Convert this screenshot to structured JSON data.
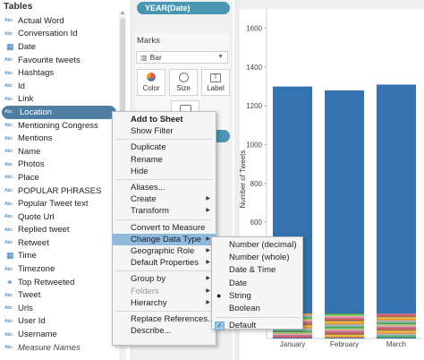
{
  "data_pane": {
    "header": "Tables",
    "fields": [
      {
        "icon": "Abc",
        "label": "Actual Word",
        "type": "dimension"
      },
      {
        "icon": "Abc",
        "label": "Conversation Id",
        "type": "dimension"
      },
      {
        "icon": "calendar",
        "label": "Date",
        "type": "dimension"
      },
      {
        "icon": "Abc",
        "label": "Favourite tweets",
        "type": "dimension"
      },
      {
        "icon": "Abc",
        "label": "Hashtags",
        "type": "dimension"
      },
      {
        "icon": "Abc",
        "label": "Id",
        "type": "dimension"
      },
      {
        "icon": "Abc",
        "label": "Link",
        "type": "dimension"
      },
      {
        "icon": "Abc",
        "label": "Location",
        "type": "dimension",
        "selected": true
      },
      {
        "icon": "Abc",
        "label": "Mentioning Congress",
        "type": "dimension"
      },
      {
        "icon": "Abc",
        "label": "Mentions",
        "type": "dimension"
      },
      {
        "icon": "Abc",
        "label": "Name",
        "type": "dimension"
      },
      {
        "icon": "Abc",
        "label": "Photos",
        "type": "dimension"
      },
      {
        "icon": "Abc",
        "label": "Place",
        "type": "dimension"
      },
      {
        "icon": "Abc",
        "label": "POPULAR PHRASES",
        "type": "dimension"
      },
      {
        "icon": "Abc",
        "label": "Popular Tweet text",
        "type": "dimension"
      },
      {
        "icon": "Abc",
        "label": "Quote Url",
        "type": "dimension"
      },
      {
        "icon": "Abc",
        "label": "Replied tweet",
        "type": "dimension"
      },
      {
        "icon": "Abc",
        "label": "Retweet",
        "type": "dimension"
      },
      {
        "icon": "calendar",
        "label": "Time",
        "type": "dimension"
      },
      {
        "icon": "Abc",
        "label": "Timezone",
        "type": "dimension"
      },
      {
        "icon": "link",
        "label": "Top Retweeted",
        "type": "dimension"
      },
      {
        "icon": "Abc",
        "label": "Tweet",
        "type": "dimension"
      },
      {
        "icon": "Abc",
        "label": "Urls",
        "type": "dimension"
      },
      {
        "icon": "Abc",
        "label": "User Id",
        "type": "dimension"
      },
      {
        "icon": "Abc",
        "label": "Username",
        "type": "dimension"
      },
      {
        "icon": "Abc",
        "label": "Measure Names",
        "type": "dimension",
        "italic": true
      }
    ]
  },
  "cards": {
    "column_pill": "YEAR(Date)",
    "marks_title": "Marks",
    "mark_type": "Bar",
    "buttons": {
      "color": "Color",
      "size": "Size",
      "label": "Label"
    }
  },
  "context_menu": {
    "items": [
      {
        "label": "Add to Sheet",
        "bold": true
      },
      {
        "label": "Show Filter"
      },
      {
        "sep": true
      },
      {
        "label": "Duplicate"
      },
      {
        "label": "Rename"
      },
      {
        "label": "Hide"
      },
      {
        "sep": true
      },
      {
        "label": "Aliases..."
      },
      {
        "label": "Create",
        "submenu": true
      },
      {
        "label": "Transform",
        "submenu": true
      },
      {
        "sep": true
      },
      {
        "label": "Convert to Measure"
      },
      {
        "label": "Change Data Type",
        "submenu": true,
        "highlight": true
      },
      {
        "label": "Geographic Role",
        "submenu": true
      },
      {
        "label": "Default Properties",
        "submenu": true
      },
      {
        "sep": true
      },
      {
        "label": "Group by",
        "submenu": true
      },
      {
        "label": "Folders",
        "submenu": true,
        "disabled": true
      },
      {
        "label": "Hierarchy",
        "submenu": true
      },
      {
        "sep": true
      },
      {
        "label": "Replace References..."
      },
      {
        "label": "Describe..."
      }
    ]
  },
  "submenu": {
    "items": [
      {
        "label": "Number (decimal)"
      },
      {
        "label": "Number (whole)"
      },
      {
        "label": "Date & Time"
      },
      {
        "label": "Date"
      },
      {
        "label": "String",
        "bullet": true
      },
      {
        "label": "Boolean"
      },
      {
        "sep": true
      },
      {
        "label": "Default",
        "checked": true
      }
    ]
  },
  "chart_data": {
    "type": "bar",
    "categories": [
      "January",
      "February",
      "March"
    ],
    "values": [
      1300,
      1280,
      1310
    ],
    "xlabel": "",
    "ylabel": "Number of Tweets",
    "ylim": [
      0,
      1700
    ],
    "yticks": [
      600,
      800,
      1000,
      1200,
      1400,
      1600
    ],
    "main_color": "#3573b0",
    "stack_colors": [
      "#e15759",
      "#f28e2b",
      "#59a14f",
      "#b07aa1",
      "#edc948",
      "#76b7b2",
      "#ff9da7",
      "#9c755f",
      "#bab0ac",
      "#8cd17d"
    ]
  }
}
